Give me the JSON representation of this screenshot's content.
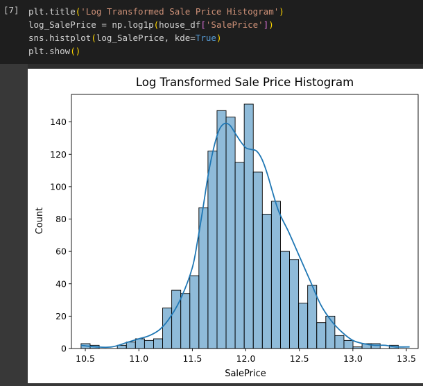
{
  "cell": {
    "execution_count": "[7]",
    "code_lines": [
      [
        {
          "t": "plt.title",
          "c": ""
        },
        {
          "t": "(",
          "c": "tok-paren"
        },
        {
          "t": "'Log Transformed Sale Price Histogram'",
          "c": "tok-str"
        },
        {
          "t": ")",
          "c": "tok-paren"
        }
      ],
      [
        {
          "t": "log_SalePrice = np.log1p",
          "c": ""
        },
        {
          "t": "(",
          "c": "tok-paren"
        },
        {
          "t": "house_df",
          "c": ""
        },
        {
          "t": "[",
          "c": "tok-bracket"
        },
        {
          "t": "'SalePrice'",
          "c": "tok-str"
        },
        {
          "t": "]",
          "c": "tok-bracket"
        },
        {
          "t": ")",
          "c": "tok-paren"
        }
      ],
      [
        {
          "t": "sns.histplot",
          "c": ""
        },
        {
          "t": "(",
          "c": "tok-paren"
        },
        {
          "t": "log_SalePrice, kde=",
          "c": ""
        },
        {
          "t": "True",
          "c": "tok-kw"
        },
        {
          "t": ")",
          "c": "tok-paren"
        }
      ],
      [
        {
          "t": "plt.show",
          "c": ""
        },
        {
          "t": "()",
          "c": "tok-paren"
        }
      ]
    ]
  },
  "chart_data": {
    "type": "bar",
    "title": "Log Transformed Sale Price Histogram",
    "xlabel": "SalePrice",
    "ylabel": "Count",
    "xlim": [
      10.37,
      13.61
    ],
    "ylim": [
      0,
      157
    ],
    "xticks": [
      "10.5",
      "11.0",
      "11.5",
      "12.0",
      "12.5",
      "13.0",
      "13.5"
    ],
    "yticks": [
      "0",
      "20",
      "40",
      "60",
      "80",
      "100",
      "120",
      "140"
    ],
    "bar_color": "#1f77b4",
    "kde_color": "#1f77b4",
    "bins": {
      "start": 10.46,
      "width": 0.0847,
      "counts": [
        3,
        2,
        0,
        0,
        2,
        4,
        6,
        5,
        6,
        25,
        36,
        34,
        45,
        87,
        122,
        147,
        143,
        115,
        151,
        109,
        83,
        91,
        60,
        55,
        28,
        39,
        16,
        20,
        8,
        5,
        1,
        3,
        3,
        0,
        2
      ]
    },
    "kde": {
      "x": [
        10.46,
        10.6,
        10.75,
        10.9,
        11.0,
        11.1,
        11.2,
        11.3,
        11.4,
        11.5,
        11.55,
        11.6,
        11.65,
        11.7,
        11.75,
        11.8,
        11.85,
        11.9,
        11.95,
        12.0,
        12.05,
        12.1,
        12.15,
        12.2,
        12.3,
        12.4,
        12.5,
        12.6,
        12.7,
        12.8,
        12.9,
        13.0,
        13.1,
        13.2,
        13.3,
        13.4,
        13.53
      ],
      "y": [
        2,
        1,
        1,
        4,
        6,
        8,
        12,
        20,
        32,
        50,
        67,
        87,
        108,
        124,
        135,
        139,
        138,
        133,
        128,
        124,
        123,
        122,
        117,
        108,
        86,
        72,
        57,
        42,
        27,
        17,
        10,
        5,
        3,
        2,
        2,
        1,
        1
      ]
    }
  }
}
